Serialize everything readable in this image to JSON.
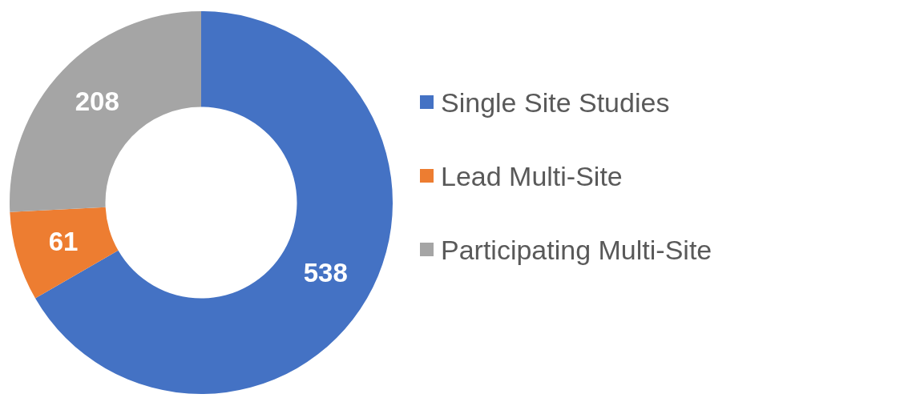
{
  "chart_data": {
    "type": "donut",
    "categories": [
      "Single Site Studies",
      "Lead Multi-Site",
      "Participating Multi-Site"
    ],
    "values": [
      538,
      61,
      208
    ],
    "colors": [
      "#4472c4",
      "#ed7d31",
      "#a5a5a5"
    ],
    "data_labels": true,
    "legend": "right"
  }
}
